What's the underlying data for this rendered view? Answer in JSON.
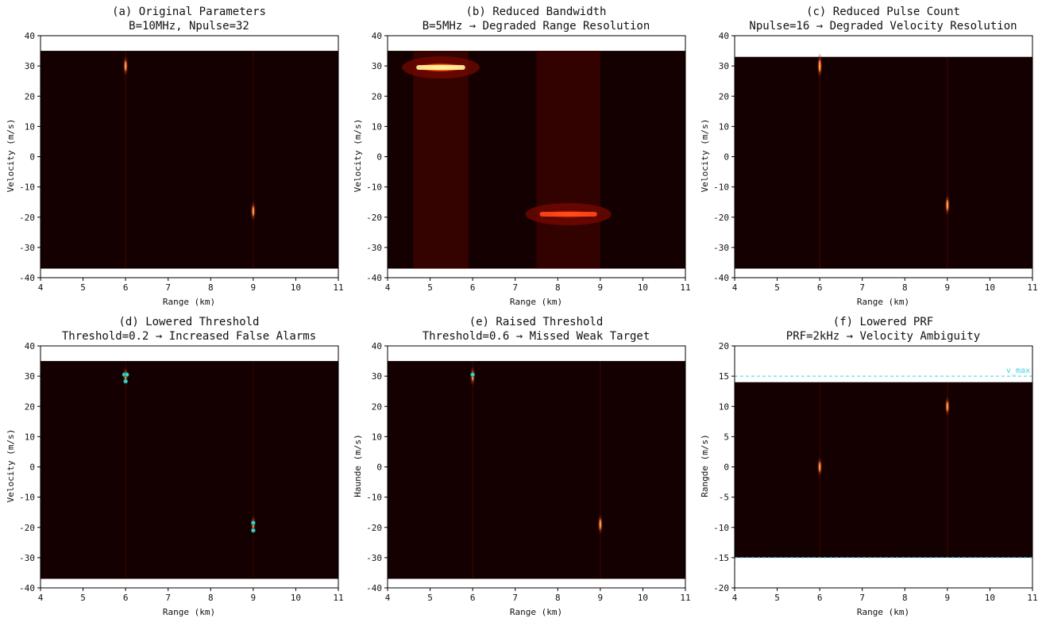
{
  "chart_data": [
    {
      "id": "a",
      "type": "heatmap",
      "title": "(a) Original Parameters",
      "subtitle": "B=10MHz, Npulse=32",
      "xlabel": "Range (km)",
      "ylabel": "Velocity (m/s)",
      "xlim": [
        4,
        11
      ],
      "ylim": [
        -40,
        40
      ],
      "xticks": [
        4,
        5,
        6,
        7,
        8,
        9,
        10,
        11
      ],
      "yticks": [
        40,
        30,
        20,
        10,
        0,
        -10,
        -20,
        -30,
        -40
      ],
      "image_extent": {
        "x": [
          4,
          11
        ],
        "y": [
          -37,
          35
        ]
      },
      "targets": [
        {
          "range_km": 6,
          "velocity_ms": 30,
          "intensity": 0.55
        },
        {
          "range_km": 9,
          "velocity_ms": -18,
          "intensity": 0.5
        }
      ]
    },
    {
      "id": "b",
      "type": "heatmap",
      "title": "(b) Reduced Bandwidth",
      "subtitle": "B=5MHz → Degraded Range Resolution",
      "xlabel": "Range (km)",
      "ylabel": "Velocity (m/s)",
      "xlim": [
        4,
        11
      ],
      "ylim": [
        -40,
        40
      ],
      "xticks": [
        4,
        5,
        6,
        7,
        8,
        9,
        10,
        11
      ],
      "yticks": [
        40,
        30,
        20,
        10,
        0,
        -10,
        -20,
        -30,
        -40
      ],
      "image_extent": {
        "x": [
          4,
          11
        ],
        "y": [
          -37,
          35
        ]
      },
      "smeared_targets": [
        {
          "range_start_km": 4.6,
          "range_end_km": 5.9,
          "velocity_ms": 29.5,
          "intensity": 1.0
        },
        {
          "range_start_km": 7.5,
          "range_end_km": 9.0,
          "velocity_ms": -19,
          "intensity": 0.8
        }
      ]
    },
    {
      "id": "c",
      "type": "heatmap",
      "title": "(c) Reduced Pulse Count",
      "subtitle": "Npulse=16 → Degraded Velocity Resolution",
      "xlabel": "Range (km)",
      "ylabel": "Velocity (m/s)",
      "xlim": [
        4,
        11
      ],
      "ylim": [
        -40,
        40
      ],
      "xticks": [
        4,
        5,
        6,
        7,
        8,
        9,
        10,
        11
      ],
      "yticks": [
        40,
        30,
        20,
        10,
        0,
        -10,
        -20,
        -30,
        -40
      ],
      "image_extent": {
        "x": [
          4,
          11
        ],
        "y": [
          -37,
          33
        ]
      },
      "targets": [
        {
          "range_km": 6,
          "velocity_ms": 30,
          "intensity": 0.75
        },
        {
          "range_km": 9,
          "velocity_ms": -16,
          "intensity": 0.6
        }
      ]
    },
    {
      "id": "d",
      "type": "heatmap",
      "title": "(d) Lowered Threshold",
      "subtitle": "Threshold=0.2 → Increased False Alarms",
      "xlabel": "Range (km)",
      "ylabel": "Velocity (m/s)",
      "xlim": [
        4,
        11
      ],
      "ylim": [
        -40,
        40
      ],
      "xticks": [
        4,
        5,
        6,
        7,
        8,
        9,
        10,
        11
      ],
      "yticks": [
        40,
        30,
        20,
        10,
        0,
        -10,
        -20,
        -30,
        -40
      ],
      "image_extent": {
        "x": [
          4,
          11
        ],
        "y": [
          -37,
          35
        ]
      },
      "targets": [
        {
          "range_km": 6,
          "velocity_ms": 30,
          "intensity": 0.4
        },
        {
          "range_km": 9,
          "velocity_ms": -19,
          "intensity": 0.35
        }
      ],
      "detections": [
        {
          "range_km": 5.97,
          "velocity_ms": 30.5
        },
        {
          "range_km": 6.03,
          "velocity_ms": 30.5
        },
        {
          "range_km": 6.0,
          "velocity_ms": 28.3
        },
        {
          "range_km": 9.0,
          "velocity_ms": -18.5
        },
        {
          "range_km": 9.0,
          "velocity_ms": -21
        }
      ]
    },
    {
      "id": "e",
      "type": "heatmap",
      "title": "(e) Raised Threshold",
      "subtitle": "Threshold=0.6 → Missed Weak Target",
      "xlabel": "Range (km)",
      "ylabel": "Haunde (m/s)",
      "xlim": [
        4,
        11
      ],
      "ylim": [
        -40,
        40
      ],
      "xticks": [
        4,
        5,
        6,
        7,
        8,
        9,
        10,
        11
      ],
      "yticks": [
        40,
        30,
        20,
        10,
        0,
        -10,
        -20,
        -30,
        -40
      ],
      "image_extent": {
        "x": [
          4,
          11
        ],
        "y": [
          -37,
          35
        ]
      },
      "targets": [
        {
          "range_km": 6,
          "velocity_ms": 30,
          "intensity": 0.5
        },
        {
          "range_km": 9,
          "velocity_ms": -19,
          "intensity": 0.55
        }
      ],
      "detections": [
        {
          "range_km": 6.0,
          "velocity_ms": 30.5
        }
      ]
    },
    {
      "id": "f",
      "type": "heatmap",
      "title": "(f) Lowered PRF",
      "subtitle": "PRF=2kHz → Velocity Ambiguity",
      "xlabel": "Range (km)",
      "ylabel": "Rangde (m/s)",
      "xlim": [
        4,
        11
      ],
      "ylim": [
        -20,
        20
      ],
      "xticks": [
        4,
        5,
        6,
        7,
        8,
        9,
        10,
        11
      ],
      "yticks": [
        20,
        15,
        10,
        5,
        0,
        -5,
        -10,
        -15,
        -20
      ],
      "image_extent": {
        "x": [
          4,
          11
        ],
        "y": [
          -15,
          14
        ]
      },
      "targets": [
        {
          "range_km": 6,
          "velocity_ms": 0,
          "intensity": 0.5
        },
        {
          "range_km": 9,
          "velocity_ms": 10,
          "intensity": 0.5
        }
      ],
      "hlines": [
        {
          "y": 15,
          "label": "v_max",
          "color": "#3fd4e0"
        },
        {
          "y": -15,
          "label": "",
          "color": "#3fd4e0"
        }
      ]
    }
  ]
}
